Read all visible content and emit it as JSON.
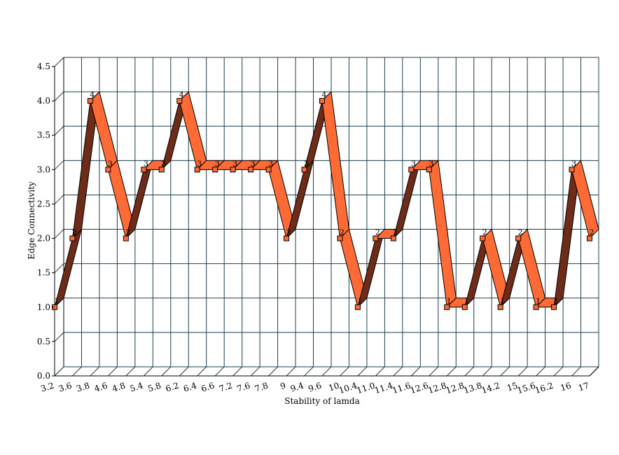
{
  "chart_data": {
    "type": "line",
    "style": "3d-ribbon",
    "xlabel": "Stability of lamda",
    "ylabel": "Edge Connectivity",
    "ylim": [
      0,
      4.5
    ],
    "ytick_step": 0.5,
    "ytick_labels": [
      "0.0",
      "0.5",
      "1.0",
      "1.5",
      "2.0",
      "2.5",
      "3.0",
      "3.5",
      "4.0",
      "4.5"
    ],
    "grid": true,
    "legend": "none",
    "categories": [
      "3.2",
      "3.6",
      "3.8",
      "4.6",
      "4.8",
      "5.4",
      "5.8",
      "6.2",
      "6.4",
      "6.6",
      "7.2",
      "7.6",
      "7.8",
      "9",
      "9.4",
      "9.6",
      "10",
      "10.4",
      "11.0",
      "11.4",
      "11.6",
      "12.6",
      "12.8",
      "12.8",
      "13.8",
      "14.2",
      "15",
      "15.6",
      "16.2",
      "16",
      "17"
    ],
    "series": [
      {
        "values": [
          1,
          2,
          4,
          3,
          2,
          3,
          3,
          4,
          3,
          3,
          3,
          3,
          3,
          2,
          3,
          4,
          2,
          1,
          2,
          2,
          3,
          3,
          1,
          1,
          2,
          1,
          2,
          1,
          1,
          3,
          2
        ]
      }
    ],
    "colors": {
      "ribbon_front": "#ff6a35",
      "ribbon_dark": "#6e2b17",
      "marker": "#ff6a35",
      "grid": "#1f3f4f",
      "outline": "#000000"
    }
  }
}
